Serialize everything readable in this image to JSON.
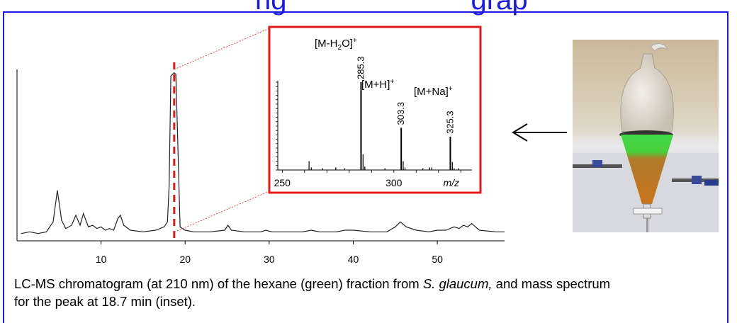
{
  "slide": {
    "title_fragment": "ng",
    "title_fragment_2": "grap"
  },
  "caption": {
    "part1": "LC-MS chromatogram (at 210 nm) of the hexane (green) fraction from ",
    "species": "S. glaucum,",
    "part2": " and mass spectrum for the peak at 18.7 min (inset)."
  },
  "colors": {
    "frame": "#1a1ae6",
    "inset_border": "#e01a1a",
    "highlight_line": "#e01a1a",
    "trace": "#222222"
  },
  "photo": {
    "icon": "separatory-funnel-photo"
  },
  "arrow": {
    "icon": "arrow-left-icon"
  },
  "chart_data": [
    {
      "type": "line",
      "title": "",
      "xlabel": "",
      "ylabel": "",
      "xlim": [
        0,
        58
      ],
      "ylim": [
        0,
        100
      ],
      "xticks": [
        10,
        20,
        30,
        40,
        50
      ],
      "highlight_x": 18.7,
      "series": [
        {
          "x": [
            0.5,
            1.5,
            2.5,
            3.5,
            4.3,
            4.8,
            5.0,
            5.3,
            5.8,
            6.5,
            7.0,
            7.5,
            7.9,
            8.5,
            9.0,
            9.5,
            10.0,
            10.5,
            11.0,
            11.5,
            12.0,
            12.3,
            12.7,
            13.5,
            15.0,
            16.5,
            17.5,
            17.9,
            18.1,
            18.3,
            18.5,
            18.7,
            18.9,
            19.1,
            19.4,
            20.0,
            21.0,
            23.0,
            24.7,
            25.1,
            25.5,
            27.0,
            29.0,
            29.6,
            30.3,
            32.0,
            34.0,
            35.0,
            36.0,
            38.0,
            39.0,
            40.0,
            42.0,
            44.0,
            45.0,
            45.6,
            46.3,
            47.5,
            49.0,
            50.0,
            51.0,
            52.0,
            52.6,
            53.1,
            53.6,
            54.1,
            55.0,
            57.0,
            58.0
          ],
          "y": [
            1,
            2,
            1,
            2,
            8,
            27,
            20,
            9,
            4,
            6,
            12,
            6,
            13,
            5,
            6,
            4,
            5,
            3,
            4,
            3,
            10,
            12,
            6,
            3,
            2,
            3,
            5,
            8,
            30,
            96,
            97,
            98,
            97,
            60,
            5,
            3,
            2,
            2,
            3,
            6,
            3,
            2,
            2,
            3,
            2,
            2,
            2,
            3,
            2,
            2,
            3,
            3,
            2,
            2,
            5,
            8,
            5,
            3,
            2,
            3,
            3,
            5,
            4,
            6,
            5,
            7,
            3,
            2,
            2
          ]
        }
      ]
    },
    {
      "type": "bar",
      "title": "",
      "xlabel": "m/z",
      "ylabel": "",
      "xlim": [
        248,
        335
      ],
      "xticks": [
        250,
        300
      ],
      "ylim": [
        0,
        100
      ],
      "peaks": [
        {
          "mz": 262.0,
          "y": 10
        },
        {
          "mz": 263.0,
          "y": 3
        },
        {
          "mz": 268.0,
          "y": 2
        },
        {
          "mz": 274.0,
          "y": 3
        },
        {
          "mz": 278.0,
          "y": 2
        },
        {
          "mz": 285.3,
          "y": 100
        },
        {
          "mz": 286.2,
          "y": 18
        },
        {
          "mz": 287.0,
          "y": 4
        },
        {
          "mz": 296.0,
          "y": 2
        },
        {
          "mz": 303.3,
          "y": 48
        },
        {
          "mz": 304.2,
          "y": 10
        },
        {
          "mz": 305.0,
          "y": 3
        },
        {
          "mz": 313.0,
          "y": 2
        },
        {
          "mz": 316.0,
          "y": 3
        },
        {
          "mz": 317.0,
          "y": 3
        },
        {
          "mz": 325.3,
          "y": 38
        },
        {
          "mz": 326.2,
          "y": 9
        },
        {
          "mz": 327.0,
          "y": 2
        },
        {
          "mz": 329.0,
          "y": 2
        }
      ],
      "peak_labels": [
        {
          "mz": 285.3,
          "text": "285.3"
        },
        {
          "mz": 303.3,
          "text": "303.3"
        },
        {
          "mz": 325.3,
          "text": "325.3"
        }
      ],
      "ion_labels": {
        "h2o_loss": {
          "pre": "[M-H",
          "sub": "2",
          "post": "O]",
          "sup": "+"
        },
        "protonated": {
          "pre": "[M+H]",
          "sup": "+"
        },
        "sodiated": {
          "pre": "[M+Na]",
          "sup": "+"
        }
      }
    }
  ]
}
